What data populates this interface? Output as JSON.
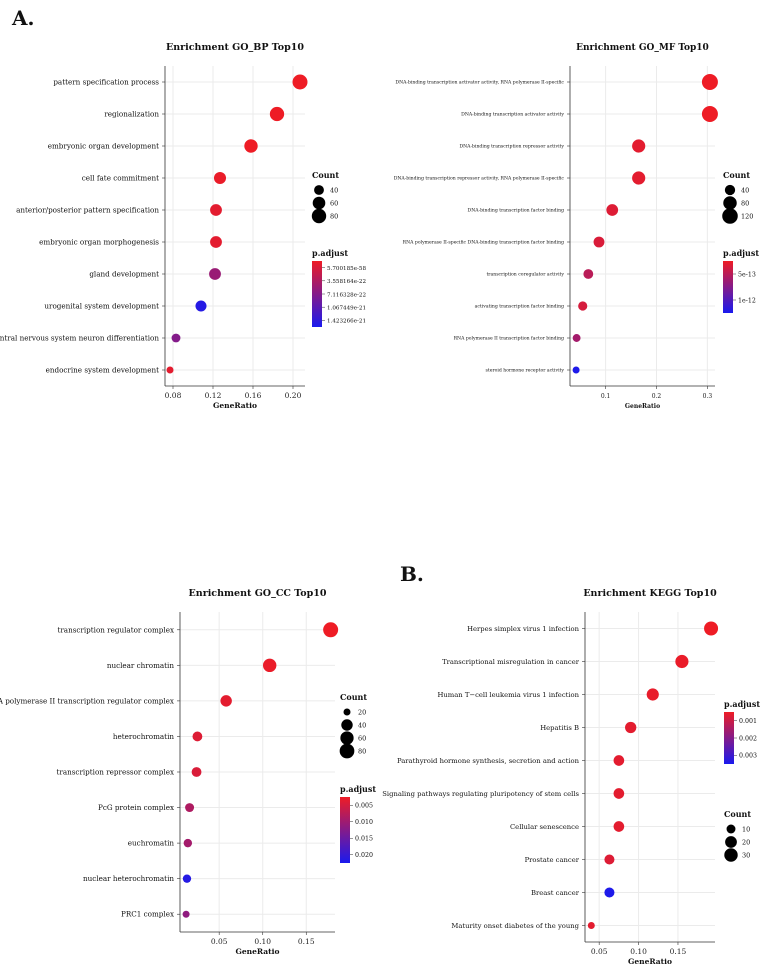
{
  "panel_labels": {
    "a": "A.",
    "b": "B."
  },
  "colors": {
    "high": "#ee1c25",
    "low": "#1a1aee",
    "grid": "#ebebeb"
  },
  "chart_data": [
    {
      "id": "bp",
      "type": "scatter",
      "title": "Enrichment GO_BP Top10",
      "xlabel": "GeneRatio",
      "categories": [
        "pattern specification process",
        "regionalization",
        "embryonic organ development",
        "cell fate commitment",
        "anterior/posterior pattern specification",
        "embryonic organ morphogenesis",
        "gland development",
        "urogenital system development",
        "central nervous system neuron differentiation",
        "endocrine system development"
      ],
      "x": [
        0.207,
        0.184,
        0.158,
        0.127,
        0.123,
        0.123,
        0.122,
        0.108,
        0.083,
        0.077
      ],
      "count": [
        88,
        79,
        68,
        55,
        53,
        53,
        53,
        47,
        36,
        33
      ],
      "color_t": [
        0.0,
        0.0,
        0.0,
        0.02,
        0.05,
        0.05,
        0.4,
        0.95,
        0.5,
        0.05
      ],
      "xticks": [
        0.08,
        0.12,
        0.16,
        0.2
      ],
      "xticklabels": [
        "0.08",
        "0.12",
        "0.16",
        "0.20"
      ],
      "xlim": [
        0.072,
        0.212
      ],
      "count_legend": {
        "title": "Count",
        "values": [
          40,
          60,
          80
        ]
      },
      "padj_legend": {
        "title": "p.adjust",
        "labels": [
          "5.700185e-58",
          "3.558164e-22",
          "7.116328e-22",
          "1.067449e-21",
          "1.423266e-21"
        ]
      }
    },
    {
      "id": "mf",
      "type": "scatter",
      "title": "Enrichment GO_MF Top10",
      "xlabel": "GeneRatio",
      "categories": [
        "DNA-binding transcription activator activity, RNA polymerase II-specific",
        "DNA-binding transcription activator activity",
        "DNA-binding transcription repressor activity",
        "DNA-binding transcription repressor activity, RNA polymerase II-specific",
        "DNA-binding transcription factor binding",
        "RNA polymerase II-specific DNA-binding transcription factor binding",
        "transcription coregulator activity",
        "activating transcription factor binding",
        "RNA polymerase II transcription factor binding",
        "steroid hormone receptor activity"
      ],
      "x": [
        0.305,
        0.305,
        0.165,
        0.165,
        0.113,
        0.087,
        0.066,
        0.055,
        0.043,
        0.042
      ],
      "count": [
        130,
        130,
        75,
        75,
        55,
        45,
        36,
        32,
        27,
        26
      ],
      "color_t": [
        0.0,
        0.0,
        0.05,
        0.05,
        0.08,
        0.1,
        0.25,
        0.12,
        0.35,
        0.98
      ],
      "xticks": [
        0.1,
        0.2,
        0.3
      ],
      "xticklabels": [
        "0.1",
        "0.2",
        "0.3"
      ],
      "xlim": [
        0.03,
        0.315
      ],
      "count_legend": {
        "title": "Count",
        "values": [
          40,
          80,
          120
        ]
      },
      "padj_legend": {
        "title": "p.adjust",
        "labels": [
          "5e-13",
          "1e-12"
        ]
      }
    },
    {
      "id": "cc",
      "type": "scatter",
      "title": "Enrichment GO_CC Top10",
      "xlabel": "GeneRatio",
      "categories": [
        "transcription regulator complex",
        "nuclear chromatin",
        "RNA polymerase II transcription regulator complex",
        "heterochromatin",
        "transcription repressor complex",
        "PcG protein complex",
        "euchromatin",
        "nuclear heterochromatin",
        "PRC1 complex"
      ],
      "x": [
        0.178,
        0.108,
        0.058,
        0.025,
        0.024,
        0.016,
        0.014,
        0.013,
        0.012
      ],
      "count": [
        85,
        62,
        40,
        28,
        28,
        24,
        22,
        22,
        20
      ],
      "color_t": [
        0.0,
        0.02,
        0.05,
        0.08,
        0.1,
        0.3,
        0.35,
        0.95,
        0.45
      ],
      "xticks": [
        0.05,
        0.1,
        0.15
      ],
      "xticklabels": [
        "0.05",
        "0.10",
        "0.15"
      ],
      "xlim": [
        0.005,
        0.183
      ],
      "count_legend": {
        "title": "Count",
        "values": [
          20,
          40,
          60,
          80
        ]
      },
      "padj_legend": {
        "title": "p.adjust",
        "labels": [
          "0.005",
          "0.010",
          "0.015",
          "0.020"
        ]
      }
    },
    {
      "id": "kegg",
      "type": "scatter",
      "title": "Enrichment KEGG Top10",
      "xlabel": "GeneRatio",
      "categories": [
        "Herpes simplex virus 1 infection",
        "Transcriptional misregulation in cancer",
        "Human T−cell leukemia virus 1 infection",
        "Hepatitis B",
        "Parathyroid hormone synthesis, secretion and action",
        "Signaling pathways regulating pluripotency of stem cells",
        "Cellular senescence",
        "Prostate cancer",
        "Breast cancer",
        "Maturity onset diabetes of the young"
      ],
      "x": [
        0.192,
        0.155,
        0.118,
        0.09,
        0.075,
        0.075,
        0.075,
        0.063,
        0.063,
        0.04
      ],
      "count": [
        34,
        28,
        22,
        18,
        15,
        15,
        15,
        13,
        13,
        8
      ],
      "color_t": [
        0.0,
        0.02,
        0.03,
        0.05,
        0.05,
        0.05,
        0.05,
        0.08,
        0.98,
        0.05
      ],
      "xticks": [
        0.05,
        0.1,
        0.15
      ],
      "xticklabels": [
        "0.05",
        "0.10",
        "0.15"
      ],
      "xlim": [
        0.032,
        0.197
      ],
      "count_legend": {
        "title": "Count",
        "values": [
          10,
          20,
          30
        ]
      },
      "padj_legend": {
        "title": "p.adjust",
        "labels": [
          "0.001",
          "0.002",
          "0.003"
        ]
      }
    }
  ]
}
